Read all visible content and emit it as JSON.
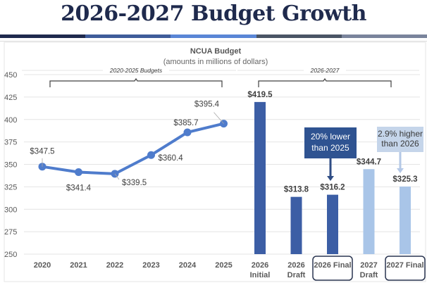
{
  "page": {
    "title": "2026-2027 Budget Growth",
    "stripe_colors": [
      "#1f2a4d",
      "#3f5c9a",
      "#5a86d6",
      "#4a5565",
      "#7a849c"
    ]
  },
  "chart_data": {
    "type": "bar+line",
    "title": "NCUA Budget",
    "subtitle": "(amounts in millions of dollars)",
    "xlabel": "",
    "ylabel": "",
    "ylim": [
      250,
      450
    ],
    "yticks": [
      450,
      425,
      400,
      375,
      350,
      325,
      300,
      275,
      250
    ],
    "grid": true,
    "categories": [
      "2020",
      "2021",
      "2022",
      "2023",
      "2024",
      "2025",
      "2026 Initial",
      "2026 Draft",
      "2026 Final",
      "2027 Draft",
      "2027 Final"
    ],
    "line_series": {
      "name": "2020-2025 Budgets",
      "color": "#4f7ccc",
      "categories": [
        "2020",
        "2021",
        "2022",
        "2023",
        "2024",
        "2025"
      ],
      "values": [
        347.5,
        341.4,
        339.5,
        360.4,
        385.7,
        395.4
      ],
      "labels": [
        "$347.5",
        "$341.4",
        "$339.5",
        "$360.4",
        "$385.7",
        "$395.4"
      ]
    },
    "bar_series": {
      "name": "2026-2027",
      "categories": [
        "2026 Initial",
        "2026 Draft",
        "2026 Final",
        "2027 Draft",
        "2027 Final"
      ],
      "values": [
        419.5,
        313.8,
        316.2,
        344.7,
        325.3
      ],
      "labels": [
        "$419.5",
        "$313.8",
        "$316.2",
        "$344.7",
        "$325.3"
      ],
      "colors": [
        "#3c5ea5",
        "#3c5ea5",
        "#3c5ea5",
        "#a9c5e8",
        "#a9c5e8"
      ]
    },
    "x_tick_lines": [
      [
        "2020"
      ],
      [
        "2021"
      ],
      [
        "2022"
      ],
      [
        "2023"
      ],
      [
        "2024"
      ],
      [
        "2025"
      ],
      [
        "2026",
        "Initial"
      ],
      [
        "2026",
        "Draft"
      ],
      [
        "2026 Final"
      ],
      [
        "2027",
        "Draft"
      ],
      [
        "2027 Final"
      ]
    ],
    "highlighted_categories": [
      "2026 Final",
      "2027 Final"
    ],
    "braces": [
      {
        "label": "2020-2025 Budgets",
        "from": "2020",
        "to": "2025"
      },
      {
        "label": "2026-2027",
        "from": "2026 Initial",
        "to": "2027 Draft"
      }
    ],
    "annotations": [
      {
        "lines": [
          "20% lower",
          "than 2025"
        ],
        "target": "2026 Final",
        "bg": "#2f5391",
        "fg": "#ffffff",
        "arrow": "#2f4d85"
      },
      {
        "lines": [
          "2.9% higher",
          "than 2026"
        ],
        "target": "2027 Final",
        "bg": "#c5d5ea",
        "fg": "#3a3a3a",
        "arrow": "#b4c8e6"
      }
    ],
    "legend": "none"
  }
}
